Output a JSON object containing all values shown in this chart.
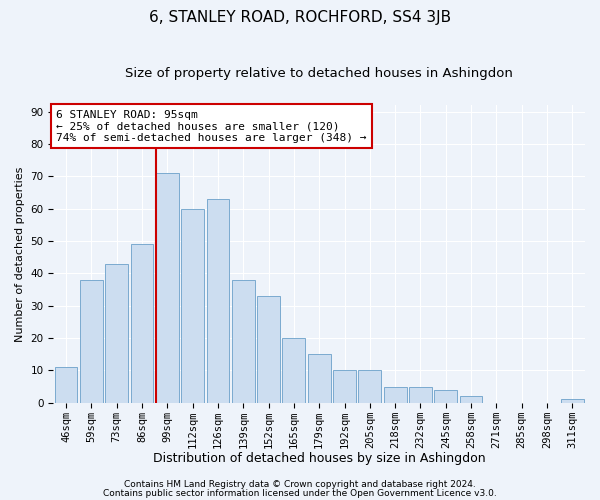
{
  "title": "6, STANLEY ROAD, ROCHFORD, SS4 3JB",
  "subtitle": "Size of property relative to detached houses in Ashingdon",
  "xlabel": "Distribution of detached houses by size in Ashingdon",
  "ylabel": "Number of detached properties",
  "categories": [
    "46sqm",
    "59sqm",
    "73sqm",
    "86sqm",
    "99sqm",
    "112sqm",
    "126sqm",
    "139sqm",
    "152sqm",
    "165sqm",
    "179sqm",
    "192sqm",
    "205sqm",
    "218sqm",
    "232sqm",
    "245sqm",
    "258sqm",
    "271sqm",
    "285sqm",
    "298sqm",
    "311sqm"
  ],
  "values": [
    11,
    38,
    43,
    49,
    71,
    60,
    63,
    38,
    33,
    20,
    15,
    10,
    10,
    5,
    5,
    4,
    2,
    0,
    0,
    0,
    1
  ],
  "bar_color": "#ccddf0",
  "bar_edge_color": "#7aaacf",
  "vline_index": 4,
  "vline_color": "#cc0000",
  "annotation_text": "6 STANLEY ROAD: 95sqm\n← 25% of detached houses are smaller (120)\n74% of semi-detached houses are larger (348) →",
  "annotation_box_edge_color": "#cc0000",
  "annotation_box_facecolor": "#ffffff",
  "ylim": [
    0,
    92
  ],
  "yticks": [
    0,
    10,
    20,
    30,
    40,
    50,
    60,
    70,
    80,
    90
  ],
  "footnote1": "Contains HM Land Registry data © Crown copyright and database right 2024.",
  "footnote2": "Contains public sector information licensed under the Open Government Licence v3.0.",
  "background_color": "#eef3fa",
  "grid_color": "#ffffff",
  "title_fontsize": 11,
  "subtitle_fontsize": 9.5,
  "xlabel_fontsize": 9,
  "ylabel_fontsize": 8,
  "tick_fontsize": 7.5,
  "annotation_fontsize": 8,
  "footnote_fontsize": 6.5
}
